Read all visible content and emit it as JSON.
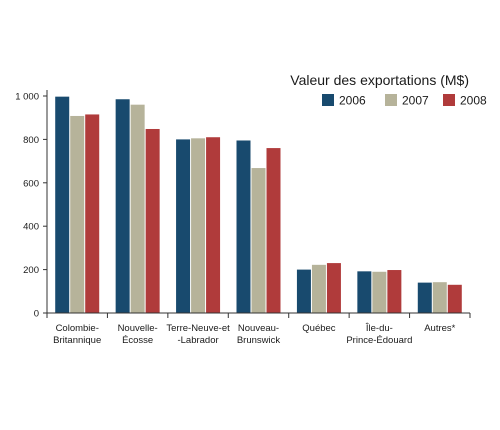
{
  "chart_data": {
    "type": "bar",
    "title": "Valeur des exportations (M$)",
    "xlabel": "",
    "ylabel": "",
    "ylim": [
      0,
      1000
    ],
    "yticks": [
      0,
      200,
      400,
      600,
      800,
      1000
    ],
    "ytick_labels": [
      "0",
      "200",
      "400",
      "600",
      "800",
      "1 000"
    ],
    "grid": false,
    "legend_position": "top-right",
    "categories": [
      [
        "Colombie-",
        "Britannique"
      ],
      [
        "Nouvelle-",
        "Écosse"
      ],
      [
        "Terre-Neuve-et",
        "-Labrador"
      ],
      [
        "Nouveau-",
        "Brunswick"
      ],
      [
        "Québec"
      ],
      [
        "Île-du-",
        "Prince-Édouard"
      ],
      [
        "Autres*"
      ]
    ],
    "series": [
      {
        "name": "2006",
        "color": "#184a6e",
        "values": [
          997,
          985,
          800,
          795,
          200,
          192,
          140
        ]
      },
      {
        "name": "2007",
        "color": "#b6b39a",
        "values": [
          908,
          960,
          805,
          668,
          222,
          190,
          142
        ]
      },
      {
        "name": "2008",
        "color": "#b03b3b",
        "values": [
          915,
          848,
          810,
          760,
          230,
          198,
          130
        ]
      }
    ]
  }
}
